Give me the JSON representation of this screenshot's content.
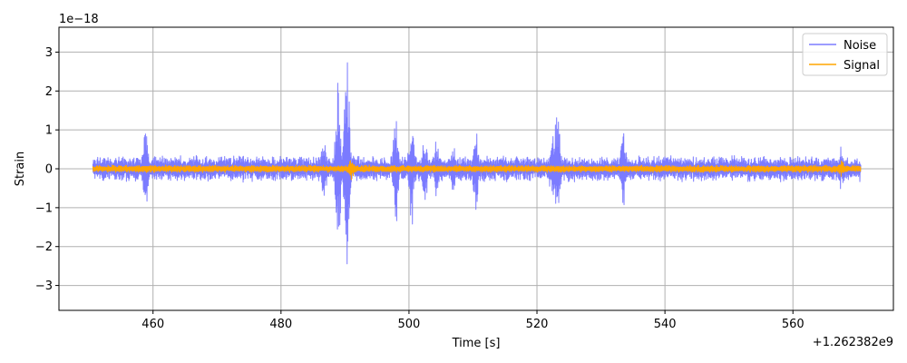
{
  "chart_data": {
    "type": "line",
    "title": "",
    "xlabel": "Time [s]",
    "ylabel": "Strain",
    "x_offset_label": "+1.262382e9",
    "y_scale_label": "1e−18",
    "xlim": [
      445.3,
      575.7
    ],
    "ylim": [
      -3.64,
      3.64
    ],
    "x_ticks": [
      460,
      480,
      500,
      520,
      540,
      560
    ],
    "x_tick_labels": [
      "460",
      "480",
      "500",
      "520",
      "540",
      "560"
    ],
    "y_ticks": [
      -3,
      -2,
      -1,
      0,
      1,
      2,
      3
    ],
    "y_tick_labels": [
      "−3",
      "−2",
      "−1",
      "0",
      "1",
      "2",
      "3"
    ],
    "grid": true,
    "legend_position": "top-right",
    "series": [
      {
        "name": "Noise",
        "color": "#7b7bff",
        "x_range": [
          450.6,
          570.6
        ],
        "base_amplitude": 0.35,
        "events": [
          {
            "t": 458.8,
            "amp": 1.35
          },
          {
            "t": 486.7,
            "amp": 1.1
          },
          {
            "t": 488.9,
            "amp": 2.3
          },
          {
            "t": 490.3,
            "amp": 3.3
          },
          {
            "t": 497.9,
            "amp": 1.8
          },
          {
            "t": 500.4,
            "amp": 1.65
          },
          {
            "t": 502.5,
            "amp": 1.1
          },
          {
            "t": 504.3,
            "amp": 0.8
          },
          {
            "t": 507.0,
            "amp": 0.7
          },
          {
            "t": 510.4,
            "amp": 1.3
          },
          {
            "t": 522.4,
            "amp": 1.0
          },
          {
            "t": 523.2,
            "amp": 1.9
          },
          {
            "t": 533.5,
            "amp": 1.35
          },
          {
            "t": 567.5,
            "amp": 0.6
          }
        ]
      },
      {
        "name": "Signal",
        "color": "#ffa500",
        "x_range": [
          450.6,
          570.6
        ],
        "base_amplitude": 0.1,
        "events": [
          {
            "t": 491.0,
            "amp": 0.3
          },
          {
            "t": 567.6,
            "amp": 0.28
          }
        ]
      }
    ]
  }
}
